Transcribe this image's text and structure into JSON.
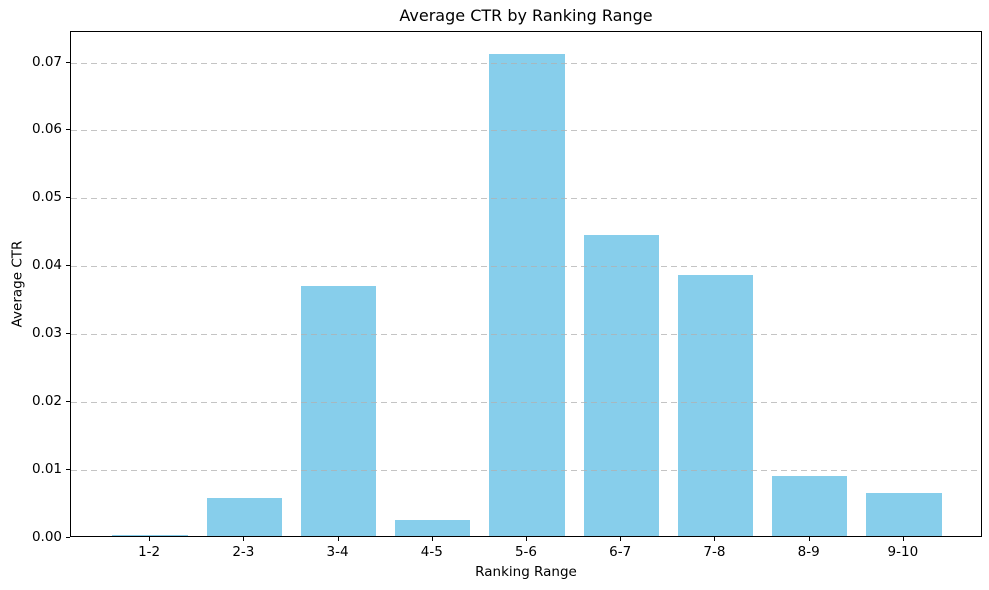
{
  "chart_data": {
    "type": "bar",
    "title": "Average CTR by Ranking Range",
    "xlabel": "Ranking Range",
    "ylabel": "Average CTR",
    "categories": [
      "1-2",
      "2-3",
      "3-4",
      "4-5",
      "5-6",
      "6-7",
      "7-8",
      "8-9",
      "9-10"
    ],
    "values": [
      0.0002,
      0.0056,
      0.0368,
      0.0023,
      0.071,
      0.0443,
      0.0385,
      0.0088,
      0.0064
    ],
    "ylim": [
      0,
      0.0745
    ],
    "yticks": [
      "0.00",
      "0.01",
      "0.02",
      "0.03",
      "0.04",
      "0.05",
      "0.06",
      "0.07"
    ],
    "grid": "horizontal-dashed",
    "legend": "none",
    "bar_color": "#87CEEB",
    "grid_color": "#b0b0b0",
    "axis_color": "#000000",
    "background_color": "#ffffff"
  }
}
